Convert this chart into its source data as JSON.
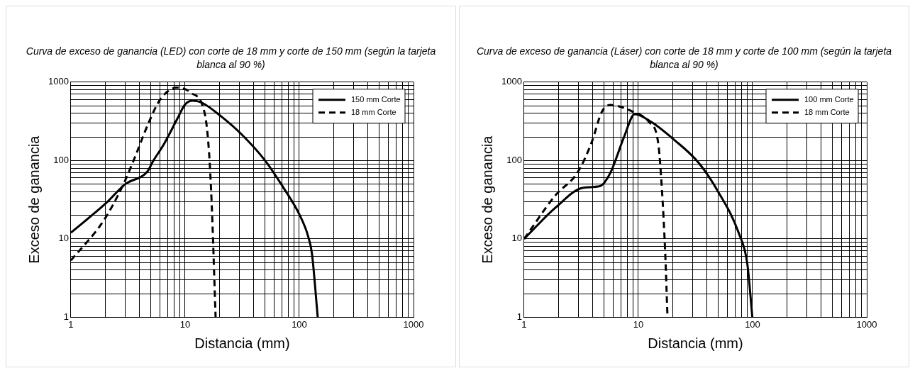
{
  "chart_data": [
    {
      "type": "line",
      "title": "Curva de exceso de ganancia (LED) con corte de 18 mm y corte de 150 mm (según la tarjeta blanca al 90 %)",
      "xlabel": "Distancia (mm)",
      "ylabel": "Exceso de ganancia",
      "log": "xy",
      "grid": true,
      "legend": "top right",
      "xlim": [
        1,
        1000
      ],
      "ylim": [
        1,
        1000
      ],
      "xticks": [
        1,
        {
          "value": 2,
          "label": null
        },
        {
          "value": 3,
          "label": null
        },
        {
          "value": 4,
          "label": null
        },
        {
          "value": 5,
          "label": null
        },
        {
          "value": 6,
          "label": null
        },
        {
          "value": 7,
          "label": null
        },
        {
          "value": 8,
          "label": null
        },
        {
          "value": 9,
          "label": null
        },
        10,
        {
          "value": 20,
          "label": null
        },
        {
          "value": 30,
          "label": null
        },
        {
          "value": 40,
          "label": null
        },
        {
          "value": 50,
          "label": null
        },
        {
          "value": 60,
          "label": null
        },
        {
          "value": 70,
          "label": null
        },
        {
          "value": 80,
          "label": null
        },
        {
          "value": 90,
          "label": null
        },
        100,
        {
          "value": 200,
          "label": null
        },
        {
          "value": 300,
          "label": null
        },
        {
          "value": 400,
          "label": null
        },
        {
          "value": 500,
          "label": null
        },
        {
          "value": 600,
          "label": null
        },
        {
          "value": 700,
          "label": null
        },
        {
          "value": 800,
          "label": null
        },
        {
          "value": 900,
          "label": null
        },
        1000
      ],
      "yticks": [
        1,
        {
          "value": 2,
          "label": null
        },
        {
          "value": 3,
          "label": null
        },
        {
          "value": 4,
          "label": null
        },
        {
          "value": 5,
          "label": null
        },
        {
          "value": 6,
          "label": null
        },
        {
          "value": 7,
          "label": null
        },
        {
          "value": 8,
          "label": null
        },
        {
          "value": 9,
          "label": null
        },
        10,
        {
          "value": 20,
          "label": null
        },
        {
          "value": 30,
          "label": null
        },
        {
          "value": 40,
          "label": null
        },
        {
          "value": 50,
          "label": null
        },
        {
          "value": 60,
          "label": null
        },
        {
          "value": 70,
          "label": null
        },
        {
          "value": 80,
          "label": null
        },
        {
          "value": 90,
          "label": null
        },
        100,
        {
          "value": 200,
          "label": null
        },
        {
          "value": 300,
          "label": null
        },
        {
          "value": 400,
          "label": null
        },
        {
          "value": 500,
          "label": null
        },
        {
          "value": 600,
          "label": null
        },
        {
          "value": 700,
          "label": null
        },
        {
          "value": 800,
          "label": null
        },
        {
          "value": 900,
          "label": null
        },
        1000
      ],
      "series": [
        {
          "name": "150 mm Corte",
          "color": "#000000",
          "line_style": "solid",
          "x": [
            1,
            2,
            3,
            4.7,
            5.2,
            6.5,
            8.5,
            10,
            11.6,
            13.9,
            20.7,
            31.8,
            49.6,
            72.6,
            101,
            119,
            129,
            145
          ],
          "values": [
            12,
            28,
            50,
            73,
            96,
            160,
            335,
            520,
            580,
            550,
            365,
            210,
            102,
            45,
            20,
            11,
            6.5,
            1
          ]
        },
        {
          "name": "18 mm Corte",
          "color": "#000000",
          "line_style": "dashed",
          "x": [
            1,
            1.93,
            2.87,
            3.56,
            4.94,
            6.1,
            8.5,
            11.3,
            14.9,
            16.2,
            17.1,
            18.5
          ],
          "values": [
            5.3,
            17,
            49,
            102,
            335,
            610,
            850,
            730,
            390,
            128,
            28,
            1
          ]
        }
      ]
    },
    {
      "type": "line",
      "title": "Curva de exceso de ganancia (Láser) con corte de 18 mm y corte de 100 mm (según la tarjeta blanca al 90 %)",
      "xlabel": "Distancia (mm)",
      "ylabel": "Exceso de ganancia",
      "log": "xy",
      "grid": true,
      "legend": "top right",
      "xlim": [
        1,
        1000
      ],
      "ylim": [
        1,
        1000
      ],
      "xticks": [
        1,
        {
          "value": 2,
          "label": null
        },
        {
          "value": 3,
          "label": null
        },
        {
          "value": 4,
          "label": null
        },
        {
          "value": 5,
          "label": null
        },
        {
          "value": 6,
          "label": null
        },
        {
          "value": 7,
          "label": null
        },
        {
          "value": 8,
          "label": null
        },
        {
          "value": 9,
          "label": null
        },
        10,
        {
          "value": 20,
          "label": null
        },
        {
          "value": 30,
          "label": null
        },
        {
          "value": 40,
          "label": null
        },
        {
          "value": 50,
          "label": null
        },
        {
          "value": 60,
          "label": null
        },
        {
          "value": 70,
          "label": null
        },
        {
          "value": 80,
          "label": null
        },
        {
          "value": 90,
          "label": null
        },
        100,
        {
          "value": 200,
          "label": null
        },
        {
          "value": 300,
          "label": null
        },
        {
          "value": 400,
          "label": null
        },
        {
          "value": 500,
          "label": null
        },
        {
          "value": 600,
          "label": null
        },
        {
          "value": 700,
          "label": null
        },
        {
          "value": 800,
          "label": null
        },
        {
          "value": 900,
          "label": null
        },
        1000
      ],
      "yticks": [
        1,
        {
          "value": 2,
          "label": null
        },
        {
          "value": 3,
          "label": null
        },
        {
          "value": 4,
          "label": null
        },
        {
          "value": 5,
          "label": null
        },
        {
          "value": 6,
          "label": null
        },
        {
          "value": 7,
          "label": null
        },
        {
          "value": 8,
          "label": null
        },
        {
          "value": 9,
          "label": null
        },
        10,
        {
          "value": 20,
          "label": null
        },
        {
          "value": 30,
          "label": null
        },
        {
          "value": 40,
          "label": null
        },
        {
          "value": 50,
          "label": null
        },
        {
          "value": 60,
          "label": null
        },
        {
          "value": 70,
          "label": null
        },
        {
          "value": 80,
          "label": null
        },
        {
          "value": 90,
          "label": null
        },
        100,
        {
          "value": 200,
          "label": null
        },
        {
          "value": 300,
          "label": null
        },
        {
          "value": 400,
          "label": null
        },
        {
          "value": 500,
          "label": null
        },
        {
          "value": 600,
          "label": null
        },
        {
          "value": 700,
          "label": null
        },
        {
          "value": 800,
          "label": null
        },
        {
          "value": 900,
          "label": null
        },
        1000
      ],
      "series": [
        {
          "name": "100 mm Corte",
          "color": "#000000",
          "line_style": "solid",
          "x": [
            1,
            1.88,
            3.3,
            4.6,
            5.7,
            7.5,
            9.3,
            13,
            20.3,
            33.4,
            49,
            76,
            90,
            99.6
          ],
          "values": [
            10,
            25,
            45,
            47,
            70,
            200,
            390,
            310,
            187,
            95,
            42,
            11.7,
            4.8,
            1
          ]
        },
        {
          "name": "18 mm Corte",
          "color": "#000000",
          "line_style": "dashed",
          "x": [
            1,
            1.88,
            2.93,
            3.9,
            4.8,
            5.7,
            8.9,
            12.4,
            14.9,
            16.1,
            17.2,
            18
          ],
          "values": [
            10,
            36,
            70,
            170,
            420,
            510,
            420,
            310,
            170,
            42,
            6.5,
            1
          ]
        }
      ]
    }
  ]
}
